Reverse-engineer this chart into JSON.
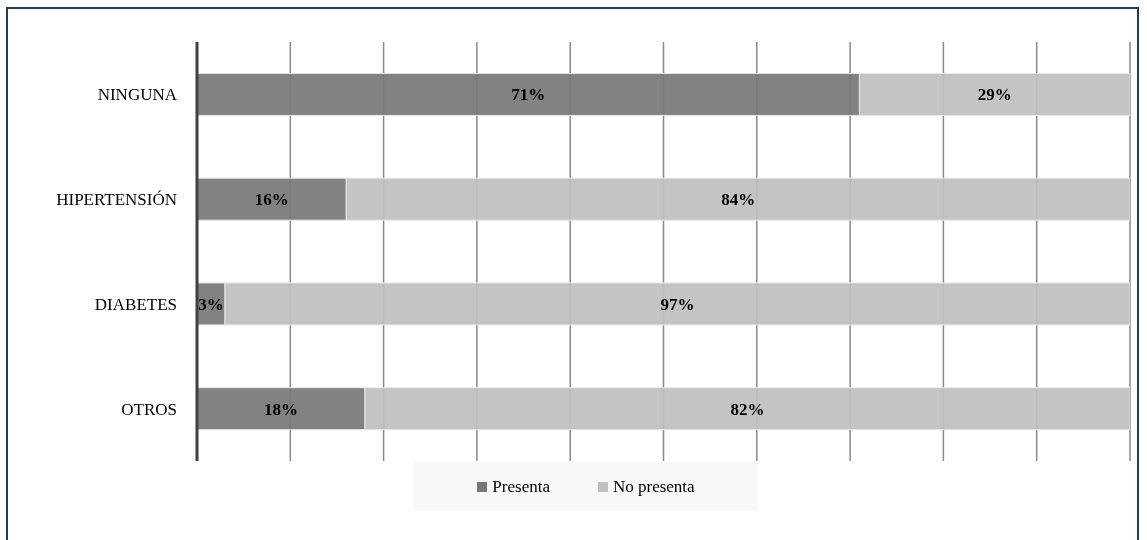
{
  "chart_data": {
    "type": "bar",
    "orientation": "horizontal",
    "stacked": true,
    "categories": [
      "NINGUNA",
      "HIPERTENSIÓN",
      "DIABETES",
      "OTROS"
    ],
    "series": [
      {
        "name": "Presenta",
        "color": "#777777",
        "values": [
          71,
          16,
          3,
          18
        ],
        "value_labels": [
          "71%",
          "16%",
          "3%",
          "18%"
        ]
      },
      {
        "name": "No presenta",
        "color": "#bfbfbf",
        "values": [
          29,
          84,
          97,
          82
        ],
        "value_labels": [
          "29%",
          "84%",
          "97%",
          "82%"
        ]
      }
    ],
    "xlim": [
      0,
      100
    ],
    "xticks": [
      {
        "value": 0,
        "label": null
      },
      {
        "value": 10,
        "label": null
      },
      {
        "value": 20,
        "label": null
      },
      {
        "value": 30,
        "label": null
      },
      {
        "value": 40,
        "label": null
      },
      {
        "value": 50,
        "label": null
      },
      {
        "value": 60,
        "label": null
      },
      {
        "value": 70,
        "label": null
      },
      {
        "value": 80,
        "label": null
      },
      {
        "value": 90,
        "label": null
      },
      {
        "value": 100,
        "label": null
      }
    ],
    "tick_labels": "y",
    "grid": "x",
    "legend": "bottom"
  }
}
